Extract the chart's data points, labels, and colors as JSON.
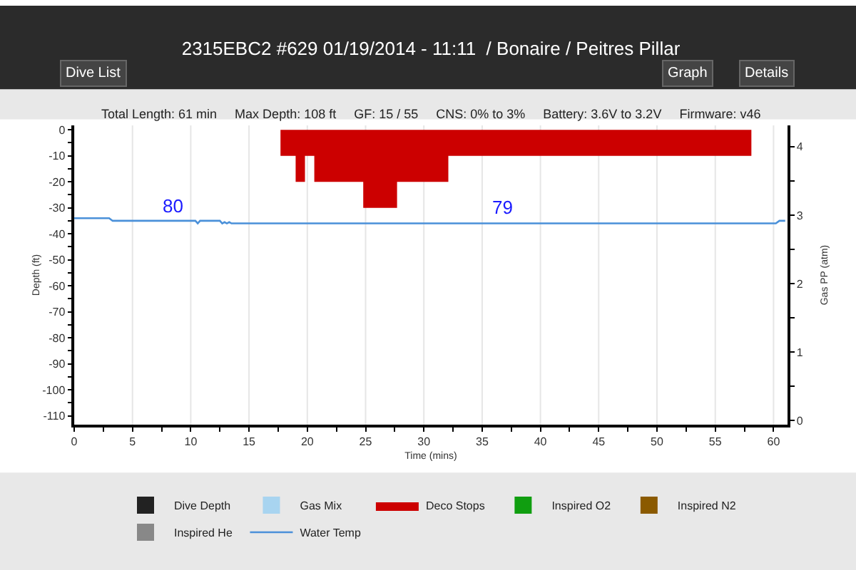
{
  "chart_data": {
    "type": "line",
    "title": "2315EBC2 #629 01/19/2014 - 11:11  / Bonaire / Peitres Pillar",
    "subtitle": "Total Length: 61 min     Max Depth: 108 ft     GF: 15 / 55     CNS: 0% to 3%     Battery: 3.6V to 3.2V     Firmware: v46",
    "xlabel": "Time (mins)",
    "ylabel": "Depth (ft)",
    "y2label": "Gas PP (atm)",
    "annotations": [
      "Dive List",
      "Graph",
      "Details",
      "80",
      "79"
    ],
    "xlim": [
      0,
      61.2
    ],
    "ylim": [
      -113.4,
      1.7
    ],
    "y2lim": [
      -0.06,
      4.31
    ],
    "xticks": [
      0,
      {
        "value": 2.5,
        "label": null
      },
      5,
      {
        "value": 7.5,
        "label": null
      },
      10,
      {
        "value": 12.5,
        "label": null
      },
      15,
      {
        "value": 17.5,
        "label": null
      },
      20,
      {
        "value": 22.5,
        "label": null
      },
      25,
      {
        "value": 27.5,
        "label": null
      },
      30,
      {
        "value": 32.5,
        "label": null
      },
      35,
      {
        "value": 37.5,
        "label": null
      },
      40,
      {
        "value": 42.5,
        "label": null
      },
      45,
      {
        "value": 47.5,
        "label": null
      },
      50,
      {
        "value": 52.5,
        "label": null
      },
      55,
      {
        "value": 57.5,
        "label": null
      },
      60
    ],
    "yticks": [
      0,
      {
        "value": -5,
        "label": null
      },
      -10,
      {
        "value": -15,
        "label": null
      },
      -20,
      {
        "value": -25,
        "label": null
      },
      -30,
      {
        "value": -35,
        "label": null
      },
      -40,
      {
        "value": -45,
        "label": null
      },
      -50,
      {
        "value": -55,
        "label": null
      },
      -60,
      {
        "value": -65,
        "label": null
      },
      -70,
      {
        "value": -75,
        "label": null
      },
      -80,
      {
        "value": -85,
        "label": null
      },
      -90,
      {
        "value": -95,
        "label": null
      },
      -100,
      {
        "value": -105,
        "label": null
      },
      -110
    ],
    "y2ticks": [
      0,
      {
        "value": 0.5,
        "label": null
      },
      1,
      {
        "value": 1.5,
        "label": null
      },
      2,
      {
        "value": 2.5,
        "label": null
      },
      3,
      {
        "value": 3.5,
        "label": null
      },
      4
    ],
    "grid": "x",
    "legend": "bottom",
    "marker": "none",
    "series": [
      {
        "name": "Dive Depth",
        "type": "bar",
        "color": "#222222",
        "values": [
          null
        ]
      },
      {
        "name": "Gas Mix",
        "type": "bar",
        "color": "#a8d4f0",
        "values": [
          null
        ]
      },
      {
        "name": "Deco Stops",
        "type": "area",
        "color": "#cc0000",
        "x": [
          17.7,
          17.7,
          19.0,
          19.8,
          20.6,
          24.8,
          27.7,
          32.1,
          58.1,
          58.1
        ],
        "values": [
          0,
          -10,
          -20,
          -10,
          -20,
          -30,
          -20,
          -10,
          -10,
          0
        ]
      },
      {
        "name": "Inspired O2",
        "type": "bar",
        "color": "#109e10",
        "values": [
          null
        ]
      },
      {
        "name": "Inspired N2",
        "type": "bar",
        "color": "#8b5a00",
        "values": [
          null
        ]
      },
      {
        "name": "Inspired He",
        "type": "bar",
        "color": "#888888",
        "values": [
          null
        ]
      },
      {
        "name": "Water Temp",
        "color": "#4a90d9",
        "x": [
          0,
          3,
          3.3,
          10.4,
          10.6,
          10.8,
          12.5,
          12.7,
          12.9,
          13.1,
          13.3,
          13.5,
          60.2,
          60.5,
          61
        ],
        "values": [
          -34,
          -34,
          -35,
          -35,
          -36,
          -35,
          -35,
          -36,
          -35.5,
          -36,
          -35.5,
          -36,
          -36,
          -35,
          -35
        ]
      }
    ]
  }
}
